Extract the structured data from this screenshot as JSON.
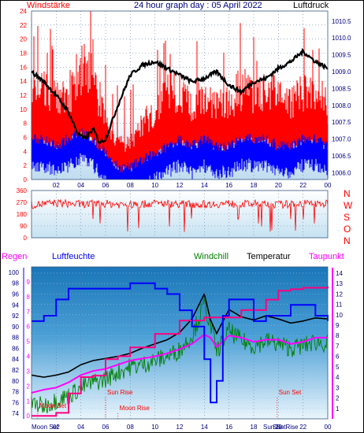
{
  "header": {
    "left": "Windstärke",
    "title": "24 hour graph day : 05 April 2022",
    "right": "Luftdruck"
  },
  "colors": {
    "red": "#ff0000",
    "blue": "#0000ff",
    "black": "#000000",
    "green": "#008000",
    "magenta": "#ff00ff",
    "crimson": "#ff0080",
    "navy": "#000080"
  },
  "chart_data": [
    {
      "type": "line",
      "title": "Windstärke / Luftdruck",
      "x_ticks": [
        "02",
        "04",
        "06",
        "08",
        "10",
        "12",
        "14",
        "16",
        "18",
        "20",
        "22",
        "00"
      ],
      "left_axis": {
        "label": "Windstärke",
        "ticks": [
          0,
          2,
          4,
          6,
          8,
          10,
          12,
          14,
          16,
          18,
          20,
          22,
          24
        ],
        "ylim": [
          0,
          24
        ]
      },
      "right_axis": {
        "label": "Luftdruck",
        "ticks": [
          1006,
          1006.5,
          1007,
          1007.5,
          1008,
          1008.5,
          1009,
          1009.5,
          1010,
          1010.5
        ],
        "ylim": [
          1005.8,
          1010.8
        ]
      },
      "series": [
        {
          "name": "Luftdruck",
          "axis": "right",
          "color": "black",
          "x": [
            0,
            1,
            2,
            3,
            3.7,
            4.3,
            5,
            5.5,
            6,
            7,
            8,
            9,
            10,
            11,
            12,
            13,
            14,
            15,
            16,
            17,
            18,
            19,
            20,
            21,
            22,
            23,
            24
          ],
          "y": [
            1009.0,
            1008.7,
            1008.3,
            1007.8,
            1007.2,
            1007.0,
            1007.3,
            1006.9,
            1007.0,
            1008.0,
            1008.9,
            1009.2,
            1009.3,
            1009.1,
            1008.9,
            1008.7,
            1008.8,
            1009.0,
            1008.6,
            1008.4,
            1008.7,
            1008.8,
            1009.1,
            1009.3,
            1009.6,
            1009.3,
            1009.1
          ]
        },
        {
          "name": "Windstärke gust",
          "axis": "left",
          "color": "red",
          "x": [
            0,
            1,
            2,
            3,
            4,
            5,
            6,
            7,
            8,
            9,
            10,
            11,
            12,
            13,
            14,
            15,
            16,
            17,
            18,
            19,
            20,
            21,
            22,
            23,
            24
          ],
          "y": [
            12,
            13,
            11,
            12,
            16,
            15,
            8,
            5,
            5,
            8,
            10,
            13,
            12,
            11,
            12,
            10,
            11,
            13,
            12,
            13,
            12,
            11,
            12,
            13,
            10
          ]
        },
        {
          "name": "Windstärke mean",
          "axis": "left",
          "color": "blue",
          "x": [
            0,
            1,
            2,
            3,
            4,
            5,
            6,
            7,
            8,
            9,
            10,
            11,
            12,
            13,
            14,
            15,
            16,
            17,
            18,
            19,
            20,
            21,
            22,
            23,
            24
          ],
          "y": [
            5,
            5,
            4,
            5,
            6,
            5,
            3,
            1,
            1,
            2,
            3,
            4,
            5,
            4,
            5,
            4,
            4,
            5,
            5,
            5,
            4,
            4,
            5,
            5,
            4
          ]
        }
      ]
    },
    {
      "type": "line",
      "title": "Windrichtung",
      "left_axis": {
        "ticks": [
          0,
          90,
          180,
          270,
          360
        ],
        "ylim": [
          0,
          360
        ]
      },
      "right_axis_labels": [
        "N",
        "W",
        "S",
        "O",
        "N"
      ],
      "series": [
        {
          "name": "Windrichtung",
          "color": "red",
          "x": [
            0,
            2,
            4,
            6,
            8,
            10,
            12,
            14,
            16,
            18,
            20,
            22,
            24
          ],
          "y": [
            250,
            265,
            255,
            260,
            250,
            262,
            258,
            255,
            260,
            258,
            252,
            262,
            258
          ]
        }
      ]
    },
    {
      "type": "line",
      "title": "",
      "labels": {
        "regen": "Regen",
        "luftfeuchte": "Luftfeuchte",
        "windchill": "Windchill",
        "temperatur": "Temperatur",
        "taupunkt": "Taupunkt"
      },
      "left_axis": {
        "label": "Luftfeuchte",
        "ticks": [
          74,
          76,
          78,
          80,
          82,
          84,
          86,
          88,
          90,
          92,
          94,
          96,
          98,
          100
        ],
        "ylim": [
          73,
          101
        ]
      },
      "left_axis2": {
        "label": "Regen",
        "ticks": [
          0,
          1,
          2,
          3,
          4,
          5,
          6,
          7,
          8,
          9
        ],
        "ylim": [
          -0.2,
          10
        ]
      },
      "right_axis": {
        "label": "Temperatur",
        "ticks": [
          1,
          2,
          3,
          4,
          5,
          6,
          7,
          8,
          9,
          10,
          11,
          12,
          13,
          14
        ],
        "ylim": [
          0,
          14.6
        ]
      },
      "x_ticks": [
        "02",
        "04",
        "06",
        "08",
        "10",
        "12",
        "14",
        "16",
        "18",
        "20",
        "22",
        "00"
      ],
      "annotations": [
        "Moon Set",
        "Sun Rise",
        "Moon Rise",
        "Sun Set",
        "Moon Set",
        "Sun Rise",
        "Sun Set"
      ],
      "series": [
        {
          "name": "Luftfeuchte",
          "axis": "left",
          "color": "blue",
          "x": [
            0,
            1,
            2,
            3,
            4,
            5,
            6,
            7,
            8,
            9,
            10,
            11,
            12,
            13,
            14,
            14.5,
            15,
            15.5,
            16,
            17,
            18,
            19,
            20,
            21,
            22,
            23,
            24
          ],
          "y": [
            91,
            92,
            95,
            97,
            97,
            97,
            97,
            97,
            98,
            98,
            97,
            96,
            93,
            90,
            84,
            76,
            80,
            92,
            95,
            95,
            91,
            92,
            92,
            94,
            94,
            92,
            91
          ]
        },
        {
          "name": "Temperatur",
          "axis": "right",
          "color": "black",
          "x": [
            0,
            1,
            2,
            3,
            4,
            5,
            6,
            7,
            8,
            9,
            10,
            11,
            12,
            13,
            14,
            14.5,
            15,
            16,
            17,
            18,
            19,
            20,
            21,
            22,
            23,
            24
          ],
          "y": [
            4.2,
            4.0,
            4.2,
            4.5,
            5.2,
            5.6,
            5.8,
            6.0,
            6.3,
            6.8,
            7.2,
            7.6,
            8.3,
            9.6,
            12.0,
            9.5,
            8.2,
            10.5,
            9.8,
            9.5,
            9.9,
            9.6,
            9.2,
            9.4,
            9.7,
            9.6
          ]
        },
        {
          "name": "Windchill",
          "axis": "right",
          "color": "green",
          "x": [
            0,
            1,
            2,
            3,
            4,
            5,
            6,
            7,
            8,
            9,
            10,
            11,
            12,
            13,
            14,
            14.5,
            15,
            16,
            17,
            18,
            19,
            20,
            21,
            22,
            23,
            24
          ],
          "y": [
            1.5,
            1.2,
            1.8,
            2.2,
            3.0,
            3.5,
            3.8,
            4.5,
            5.0,
            5.2,
            5.6,
            6.0,
            6.6,
            8.0,
            11.0,
            9.0,
            6.5,
            8.5,
            7.5,
            7.0,
            7.5,
            7.2,
            6.8,
            7.0,
            7.4,
            7.2
          ]
        },
        {
          "name": "Taupunkt",
          "axis": "right",
          "color": "magenta",
          "x": [
            0,
            1,
            2,
            3,
            4,
            5,
            6,
            7,
            8,
            9,
            10,
            11,
            12,
            13,
            14,
            14.5,
            15,
            16,
            17,
            18,
            19,
            20,
            21,
            22,
            23,
            24
          ],
          "y": [
            2.5,
            2.8,
            3.0,
            3.5,
            4.2,
            4.6,
            4.8,
            5.2,
            5.6,
            5.8,
            6.0,
            6.3,
            6.7,
            7.2,
            8.1,
            7.8,
            6.9,
            8.0,
            7.8,
            7.4,
            7.6,
            7.6,
            7.2,
            7.4,
            7.8,
            7.8
          ]
        },
        {
          "name": "Regen",
          "axis": "left2",
          "color": "crimson",
          "x": [
            0,
            2,
            3,
            4,
            5,
            6,
            7,
            8,
            10,
            12,
            14,
            16,
            17,
            18,
            19,
            20,
            21,
            22,
            23,
            24
          ],
          "y": [
            0.0,
            0.2,
            1.5,
            2.6,
            2.7,
            3.8,
            4.0,
            4.6,
            5.5,
            6.4,
            6.6,
            6.6,
            7.1,
            7.1,
            7.8,
            8.4,
            8.5,
            8.6,
            8.6,
            8.7
          ]
        }
      ]
    }
  ]
}
